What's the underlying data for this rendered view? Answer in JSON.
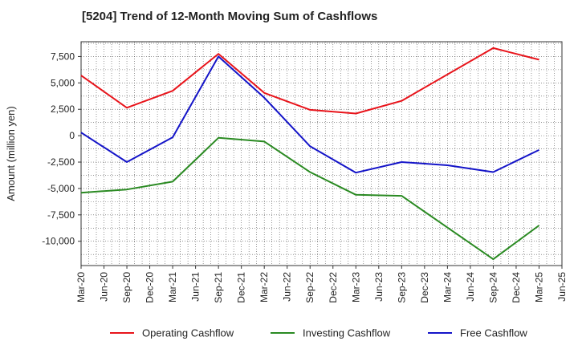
{
  "chart_data": {
    "type": "line",
    "title": "[5204]  Trend of 12-Month Moving Sum of Cashflows",
    "xlabel": "",
    "ylabel": "Amount (million yen)",
    "x_ticks": [
      "Mar-20",
      "Jun-20",
      "Sep-20",
      "Dec-20",
      "Mar-21",
      "Jun-21",
      "Sep-21",
      "Dec-21",
      "Mar-22",
      "Jun-22",
      "Sep-22",
      "Dec-22",
      "Mar-23",
      "Jun-23",
      "Sep-23",
      "Dec-23",
      "Mar-24",
      "Jun-24",
      "Sep-24",
      "Dec-24",
      "Mar-25",
      "Jun-25"
    ],
    "y_ticks": [
      7500,
      5000,
      2500,
      0,
      -2500,
      -5000,
      -7500,
      -10000
    ],
    "y_tick_labels": [
      "7,500",
      "5,000",
      "2,500",
      "0",
      "-2,500",
      "-5,000",
      "-7,500",
      "-10,000"
    ],
    "ylim": [
      -12300,
      8900
    ],
    "grid": true,
    "legend_position": "bottom",
    "series": [
      {
        "name": "Operating Cashflow",
        "color": "#e8141b",
        "x": [
          "Mar-20",
          "Sep-20",
          "Mar-21",
          "Sep-21",
          "Mar-22",
          "Sep-22",
          "Mar-23",
          "Sep-23",
          "Sep-24",
          "Mar-25"
        ],
        "values": [
          5700,
          2650,
          4250,
          7750,
          4050,
          2450,
          2100,
          3300,
          8300,
          7200
        ]
      },
      {
        "name": "Investing Cashflow",
        "color": "#2a8a22",
        "x": [
          "Mar-20",
          "Sep-20",
          "Mar-21",
          "Sep-21",
          "Mar-22",
          "Sep-22",
          "Mar-23",
          "Sep-23",
          "Sep-24",
          "Mar-25"
        ],
        "values": [
          -5400,
          -5100,
          -4350,
          -200,
          -550,
          -3450,
          -5600,
          -5700,
          -11700,
          -8500
        ]
      },
      {
        "name": "Free Cashflow",
        "color": "#1414c8",
        "x": [
          "Mar-20",
          "Sep-20",
          "Mar-21",
          "Sep-21",
          "Mar-22",
          "Sep-22",
          "Mar-23",
          "Sep-23",
          "Mar-24",
          "Sep-24",
          "Mar-25"
        ],
        "values": [
          300,
          -2500,
          -150,
          7500,
          3600,
          -1000,
          -3500,
          -2500,
          -2800,
          -3450,
          -1350
        ]
      }
    ]
  }
}
